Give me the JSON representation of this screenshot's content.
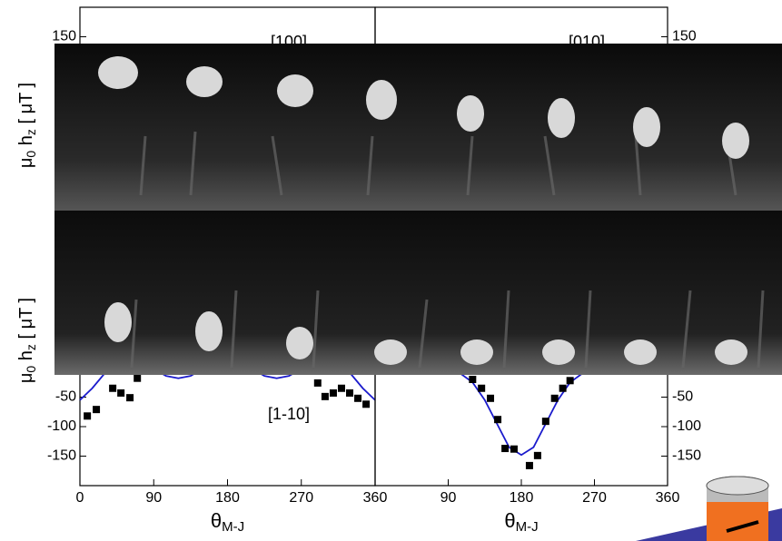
{
  "chart_data": [
    {
      "type": "scatter",
      "label": "[100]",
      "xlim": [
        0,
        360
      ],
      "ylim": [
        -200,
        200
      ],
      "yticks": [
        150
      ],
      "ylabel": [
        "μ",
        "0",
        " h",
        "z",
        " [ μT ]"
      ]
    },
    {
      "type": "scatter",
      "label": "[010]",
      "xlim": [
        0,
        360
      ],
      "y2lim": [
        -200,
        200
      ],
      "y2ticks": [
        150
      ]
    },
    {
      "type": "scatter",
      "label": "[1-10]",
      "xlim": [
        0,
        360
      ],
      "ylim": [
        -200,
        200
      ],
      "yticks": [
        -50,
        -100,
        -150
      ],
      "xticks": [
        0,
        90,
        180,
        270,
        360
      ],
      "xlabel": [
        "θ",
        "M-J"
      ],
      "ylabel": [
        "μ",
        "0",
        " h",
        "z",
        " [ μT ]"
      ],
      "points": {
        "color": "#000000",
        "x": [
          9,
          20,
          40,
          50,
          61,
          70,
          290,
          299,
          309,
          319,
          329,
          339,
          349
        ],
        "values": [
          -82,
          -71,
          -35,
          -43,
          -51,
          -18,
          -26,
          -49,
          -43,
          -35,
          -43,
          -52,
          -62
        ]
      },
      "curve": {
        "color": "#1a1acc",
        "x": [
          0,
          15,
          30,
          45,
          60,
          75,
          90,
          105,
          120,
          135,
          150,
          165,
          180,
          195,
          210,
          225,
          240,
          255,
          270,
          285,
          300,
          315,
          330,
          345,
          360
        ],
        "values": [
          -55,
          -35,
          -10,
          8,
          15,
          10,
          -2,
          -14,
          -18,
          -14,
          -2,
          10,
          15,
          10,
          -2,
          -14,
          -18,
          -14,
          -2,
          10,
          15,
          8,
          -10,
          -35,
          -55
        ]
      }
    },
    {
      "type": "scatter",
      "xlim": [
        0,
        360
      ],
      "y2lim": [
        -200,
        200
      ],
      "y2ticks": [
        -50,
        -100,
        -150
      ],
      "xticks": [
        90,
        180,
        270,
        360
      ],
      "xlabel": [
        "θ",
        "M-J"
      ],
      "points": {
        "color": "#000000",
        "axis": "y2",
        "x": [
          120,
          131,
          142,
          151,
          160,
          171,
          190,
          200,
          210,
          221,
          231,
          240
        ],
        "values": [
          -20,
          -35,
          -52,
          -88,
          -137,
          -138,
          -166,
          -149,
          -91,
          -52,
          -35,
          -22
        ]
      },
      "curve": {
        "color": "#1a1acc",
        "axis": "y2",
        "x": [
          90,
          105,
          120,
          135,
          150,
          165,
          180,
          195,
          210,
          225,
          240,
          255,
          270
        ],
        "values": [
          5,
          -10,
          -25,
          -55,
          -95,
          -135,
          -148,
          -135,
          -95,
          -55,
          -25,
          -10,
          5
        ]
      }
    }
  ]
}
